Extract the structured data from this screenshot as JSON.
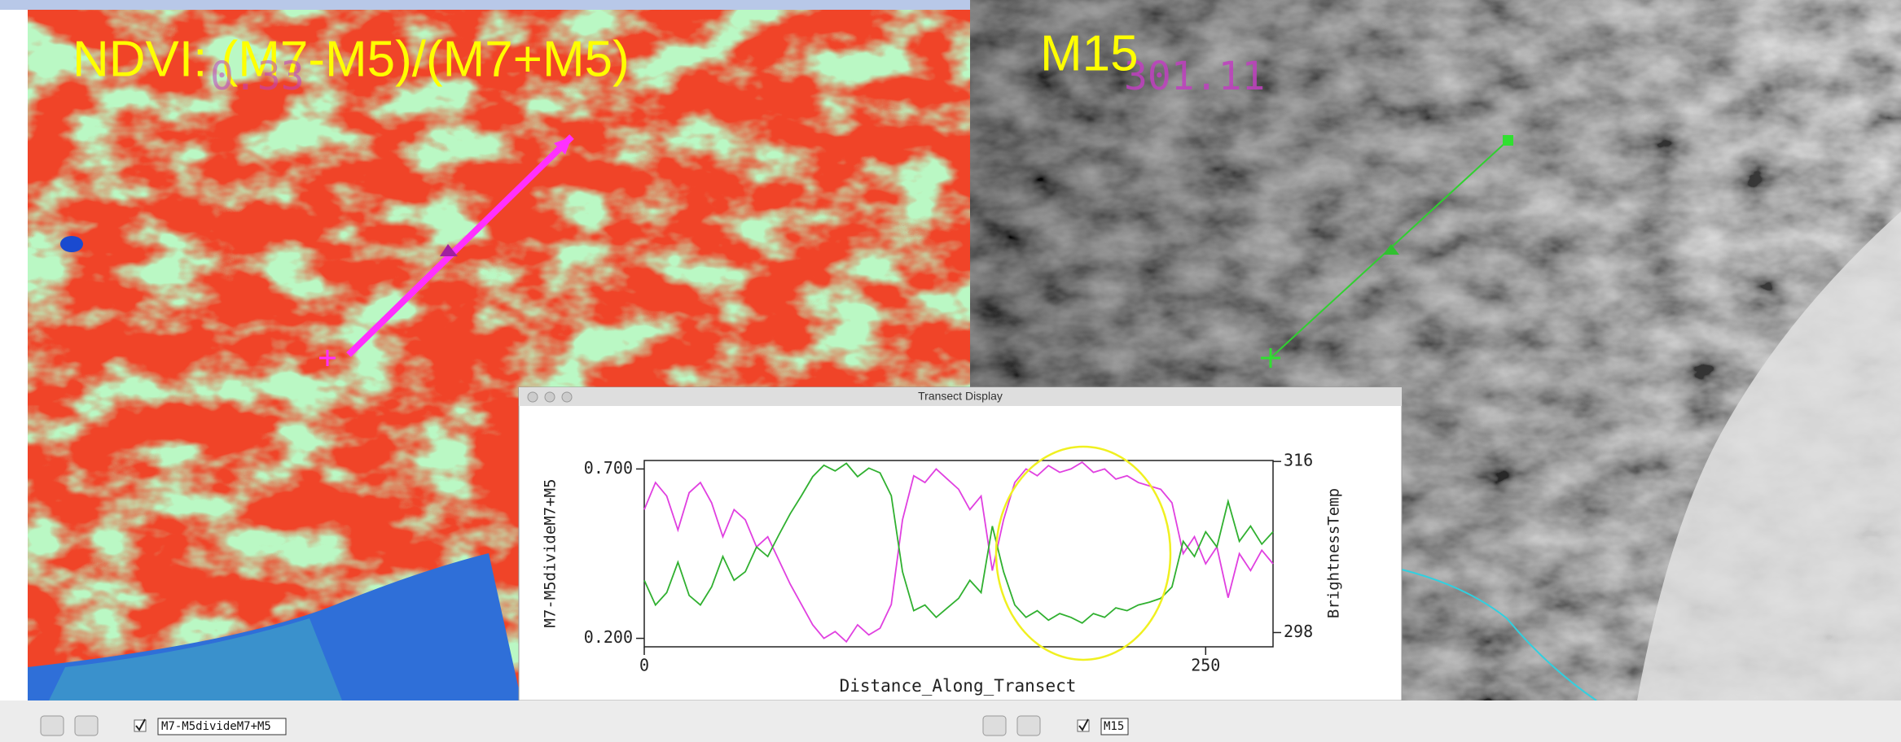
{
  "panels": [
    {
      "title": "NDVI: (M7-M5)/(M7+M5)",
      "readout": "0.33"
    },
    {
      "title": "M15",
      "readout": "301.11"
    }
  ],
  "toolbar": [
    "M7-M5divideM7+M5",
    "M15"
  ],
  "chart_data": {
    "type": "line",
    "title": "Transect Display",
    "xlabel": "Distance_Along_Transect",
    "ylabel": "M7-M5divideM7+M5",
    "y2label": "BrightnessTemp",
    "x": [
      0,
      5,
      10,
      15,
      20,
      25,
      30,
      35,
      40,
      45,
      50,
      55,
      60,
      65,
      70,
      75,
      80,
      85,
      90,
      95,
      100,
      105,
      110,
      115,
      120,
      125,
      130,
      135,
      140,
      145,
      150,
      155,
      160,
      165,
      170,
      175,
      180,
      185,
      190,
      195,
      200,
      205,
      210,
      215,
      220,
      225,
      230,
      235,
      240,
      245,
      250,
      255,
      260,
      265,
      270,
      275,
      280
    ],
    "series": [
      {
        "name": "M7-M5divideM7+M5",
        "color": "#e040e0",
        "axis": "y",
        "values": [
          0.58,
          0.66,
          0.62,
          0.52,
          0.63,
          0.66,
          0.6,
          0.5,
          0.58,
          0.55,
          0.47,
          0.5,
          0.43,
          0.36,
          0.3,
          0.24,
          0.2,
          0.22,
          0.19,
          0.24,
          0.21,
          0.23,
          0.3,
          0.55,
          0.68,
          0.66,
          0.7,
          0.67,
          0.64,
          0.58,
          0.62,
          0.4,
          0.55,
          0.66,
          0.7,
          0.68,
          0.71,
          0.69,
          0.7,
          0.72,
          0.69,
          0.7,
          0.67,
          0.68,
          0.66,
          0.65,
          0.64,
          0.6,
          0.45,
          0.5,
          0.42,
          0.47,
          0.32,
          0.45,
          0.4,
          0.46,
          0.42
        ]
      },
      {
        "name": "BrightnessTemp",
        "color": "#30b030",
        "axis": "y2",
        "values": [
          303.5,
          300.9,
          302.2,
          305.4,
          301.9,
          300.9,
          302.8,
          306.0,
          303.5,
          304.4,
          307.0,
          306.0,
          308.3,
          310.5,
          312.4,
          314.4,
          315.6,
          315.0,
          315.8,
          314.4,
          315.3,
          314.8,
          312.4,
          304.4,
          300.3,
          300.9,
          299.6,
          300.6,
          301.6,
          303.5,
          302.2,
          309.2,
          304.4,
          300.9,
          299.6,
          300.3,
          299.3,
          300.0,
          299.6,
          299.0,
          300.0,
          299.6,
          300.6,
          300.3,
          300.9,
          301.2,
          301.6,
          302.8,
          307.6,
          306.0,
          308.6,
          307.0,
          311.8,
          307.6,
          309.2,
          307.3,
          308.6
        ]
      }
    ],
    "xlim": [
      0,
      280
    ],
    "xticks": [
      0,
      250
    ],
    "ylim": [
      0.175,
      0.725
    ],
    "yticks": [
      {
        "value": 0.2,
        "label": "0.200"
      },
      {
        "value": 0.7,
        "label": "0.700"
      }
    ],
    "y2lim": [
      296.5,
      316.1
    ],
    "y2ticks": [
      298,
      316
    ]
  }
}
